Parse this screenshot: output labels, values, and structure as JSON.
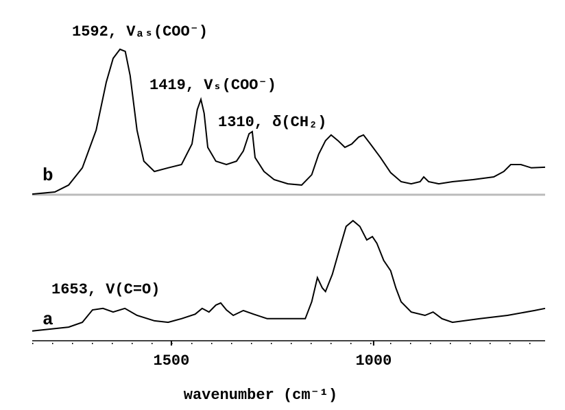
{
  "chart_data": {
    "type": "line",
    "xlabel": "wavenumber (cm⁻¹)",
    "xlim": [
      1844,
      576
    ],
    "ylim": [
      0,
      100
    ],
    "xticks": [
      1500,
      1000
    ],
    "annotations": [
      "1592, Vₐₛ(COO⁻)",
      "1419, Vₛ(COO⁻)",
      "1310, δ(CH₂)",
      "1653, V(C=O)"
    ],
    "series": [
      {
        "name": "b",
        "color": "#000000",
        "baseline": 49.1,
        "x": [
          1844,
          1788,
          1754,
          1720,
          1686,
          1661,
          1644,
          1627,
          1614,
          1602,
          1585,
          1568,
          1542,
          1508,
          1475,
          1449,
          1436,
          1427,
          1419,
          1410,
          1390,
          1364,
          1339,
          1322,
          1308,
          1300,
          1293,
          1271,
          1246,
          1212,
          1178,
          1153,
          1136,
          1119,
          1105,
          1088,
          1071,
          1054,
          1037,
          1025,
          1008,
          983,
          958,
          932,
          907,
          885,
          876,
          864,
          839,
          805,
          754,
          703,
          678,
          661,
          636,
          610,
          576
        ],
        "values": [
          49.3,
          50,
          52.3,
          58,
          70.5,
          86.4,
          94.3,
          97.3,
          96.6,
          88.6,
          70.5,
          60.2,
          56.8,
          58,
          59.1,
          65.9,
          77.3,
          80.7,
          76.1,
          64.8,
          60.2,
          59.1,
          60.2,
          63.6,
          69.3,
          70,
          61.4,
          56.8,
          54.1,
          52.7,
          52.3,
          55.7,
          62.5,
          67,
          68.9,
          67,
          64.8,
          65.9,
          68.2,
          68.9,
          65.9,
          61.4,
          56.4,
          53.4,
          52.7,
          53.4,
          55,
          53.4,
          52.7,
          53.4,
          54.1,
          55,
          56.8,
          59.1,
          59.1,
          58,
          58.2
        ]
      },
      {
        "name": "a",
        "color": "#000000",
        "x": [
          1844,
          1754,
          1720,
          1695,
          1669,
          1644,
          1615,
          1585,
          1542,
          1508,
          1475,
          1441,
          1424,
          1407,
          1390,
          1378,
          1364,
          1347,
          1322,
          1297,
          1263,
          1212,
          1169,
          1153,
          1139,
          1127,
          1119,
          1102,
          1085,
          1068,
          1051,
          1034,
          1017,
          1003,
          992,
          975,
          958,
          945,
          932,
          907,
          873,
          853,
          831,
          805,
          737,
          669,
          602,
          576
        ],
        "values": [
          3.9,
          5.2,
          6.8,
          10.9,
          11.4,
          10.2,
          11.4,
          9.1,
          7.3,
          6.8,
          8,
          9.5,
          11.4,
          10.2,
          12.5,
          13.2,
          10.9,
          9.1,
          10.7,
          9.5,
          8,
          8,
          8,
          13.6,
          21.6,
          18.2,
          17,
          22.7,
          30.7,
          38.6,
          40.5,
          38.6,
          34.1,
          35.2,
          33,
          27.3,
          23.9,
          18.2,
          13.6,
          10.2,
          9.1,
          10.2,
          8,
          6.8,
          8,
          9.1,
          10.7,
          11.4
        ]
      }
    ]
  }
}
